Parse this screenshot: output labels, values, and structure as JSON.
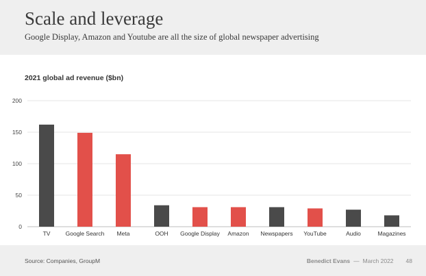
{
  "header": {
    "title": "Scale and leverage",
    "subtitle": "Google Display, Amazon and Youtube are all the size of global newspaper advertising"
  },
  "colors": {
    "dark": "#4a4a4a",
    "accent": "#e2504a",
    "grid": "#e6e6e6",
    "band": "#efefef"
  },
  "chart_data": {
    "type": "bar",
    "title": "2021 global ad revenue ($bn)",
    "xlabel": "",
    "ylabel": "",
    "ylim": [
      0,
      200
    ],
    "yticks": [
      0,
      50,
      100,
      150,
      200
    ],
    "grid": true,
    "categories": [
      "TV",
      "Google Search",
      "Meta",
      "OOH",
      "Google Display",
      "Amazon",
      "Newspapers",
      "YouTube",
      "Audio",
      "Magazines"
    ],
    "values": [
      162,
      149,
      115,
      34,
      31,
      31,
      31,
      29,
      27,
      18
    ],
    "bar_colors": [
      "#4a4a4a",
      "#e2504a",
      "#e2504a",
      "#4a4a4a",
      "#e2504a",
      "#e2504a",
      "#4a4a4a",
      "#e2504a",
      "#4a4a4a",
      "#4a4a4a"
    ]
  },
  "footer": {
    "source": "Source: Companies, GroupM",
    "author": "Benedict Evans",
    "separator": "—",
    "date": "March 2022",
    "page_number": "48"
  }
}
